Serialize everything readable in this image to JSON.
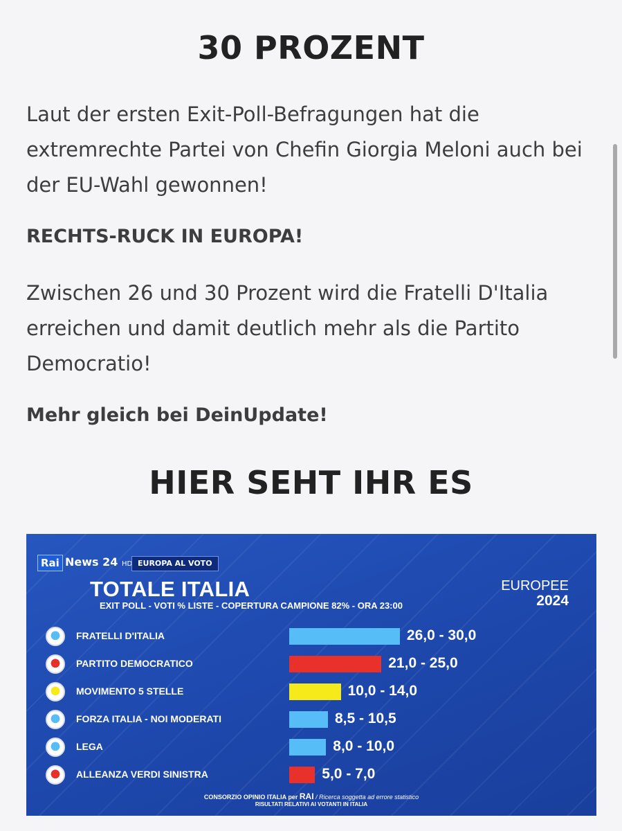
{
  "article": {
    "headline": "30 PROZENT",
    "paragraph1": "Laut der ersten Exit-Poll-Befragungen hat die extremrechte Partei von Chefin Giorgia Meloni auch bei der EU-Wahl gewonnen!",
    "subheading": "RECHTS-RUCK IN EUROPA!",
    "paragraph2": "Zwischen 26 und 30 Prozent wird die Fratelli D'Italia erreichen und damit deutlich mehr als die Partito Democratio!",
    "cta": "Mehr gleich bei DeinUpdate!",
    "headline2": "HIER SEHT IHR ES"
  },
  "broadcast": {
    "rai": "Rai",
    "news": "News 24",
    "hd": "HD",
    "tag": "EUROPA AL VOTO",
    "title": "TOTALE ITALIA",
    "subtitle": "EXIT POLL - VOTI % LISTE - COPERTURA CAMPIONE 82% - ORA 23:00",
    "europee": "EUROPEE",
    "year": "2024",
    "footer_prefix": "CONSORZIO OPINIO ITALIA per",
    "footer_rai": "RAI",
    "footer_note": "/ Ricerca soggetta ad errore statistico",
    "footer_line2": "RISULTATI RELATIVI AI VOTANTI IN ITALIA"
  },
  "chart_data": {
    "type": "bar",
    "orientation": "horizontal",
    "title": "TOTALE ITALIA",
    "categories": [
      "FRATELLI D'ITALIA",
      "PARTITO DEMOCRATICO",
      "MOVIMENTO 5 STELLE",
      "FORZA ITALIA - NOI MODERATI",
      "LEGA",
      "ALLEANZA VERDI SINISTRA"
    ],
    "ranges": [
      [
        26.0,
        30.0
      ],
      [
        21.0,
        25.0
      ],
      [
        10.0,
        14.0
      ],
      [
        8.5,
        10.5
      ],
      [
        8.0,
        10.0
      ],
      [
        5.0,
        7.0
      ]
    ],
    "labels": [
      "26,0 - 30,0",
      "21,0 - 25,0",
      "10,0 - 14,0",
      "8,5 - 10,5",
      "8,0 - 10,0",
      "5,0 - 7,0"
    ],
    "colors": [
      "#56bdf7",
      "#e8312a",
      "#f7ea1a",
      "#56bdf7",
      "#56bdf7",
      "#e8312a"
    ],
    "icons": [
      "fdi-logo-icon",
      "pd-logo-icon",
      "m5s-logo-icon",
      "fi-logo-icon",
      "lega-logo-icon",
      "avs-logo-icon"
    ]
  }
}
